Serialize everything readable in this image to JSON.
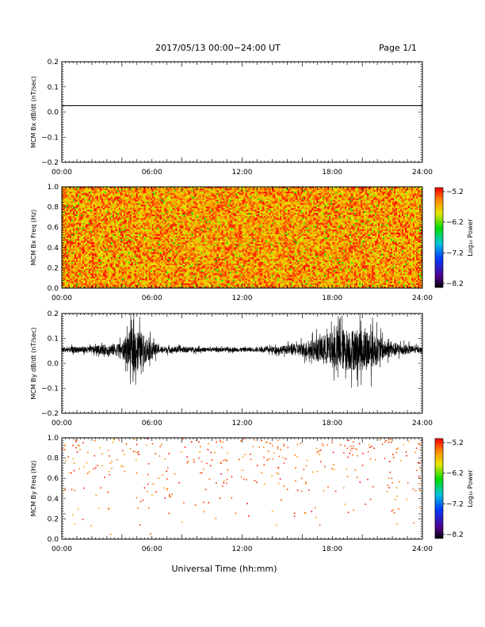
{
  "header": {
    "title": "2017/05/13  00:00−24:00 UT",
    "page": "Page 1/1"
  },
  "footer": {
    "xlabel": "Universal Time (hh:mm)"
  },
  "colors": {
    "axis": "#000000",
    "trace": "#000000"
  },
  "x_ticks": [
    "00:00",
    "06:00",
    "12:00",
    "18:00",
    "24:00"
  ],
  "chart_data": [
    {
      "type": "line",
      "ylabel": "MCM Bx dB/dt (nT/sec)",
      "xlim": [
        0,
        24
      ],
      "ylim": [
        -0.2,
        0.2
      ],
      "y_ticks": [
        "0.2",
        "0.1",
        "0.0",
        "−0.1",
        "−0.2"
      ],
      "y_tick_values": [
        0.2,
        0.1,
        0.0,
        -0.1,
        -0.2
      ],
      "series": [
        {
          "x": [
            0,
            24
          ],
          "y": [
            0.025,
            0.025
          ]
        }
      ]
    },
    {
      "type": "heatmap",
      "ylabel": "MCM Bx Freq (Hz)",
      "xlim": [
        0,
        24
      ],
      "ylim": [
        0,
        1.0
      ],
      "y_ticks": [
        "1.0",
        "0.8",
        "0.6",
        "0.4",
        "0.2",
        "0.0"
      ],
      "y_tick_values": [
        1.0,
        0.8,
        0.6,
        0.4,
        0.2,
        0.0
      ],
      "colorbar": {
        "label": "Log₁₀ Power",
        "ticks": [
          "−5.2",
          "−6.2",
          "−7.2",
          "−8.2"
        ],
        "range": [
          -8.2,
          -5.2
        ]
      },
      "description_values": {
        "typical_log_power": [
          -5.6,
          -5.2
        ]
      }
    },
    {
      "type": "line",
      "ylabel": "MCM By dB/dt (nT/sec)",
      "xlim": [
        0,
        24
      ],
      "ylim": [
        -0.2,
        0.2
      ],
      "y_ticks": [
        "0.2",
        "0.1",
        "0.0",
        "−0.1",
        "−0.2"
      ],
      "y_tick_values": [
        0.2,
        0.1,
        0.0,
        -0.1,
        -0.2
      ],
      "baseline": 0.055,
      "envelope": [
        {
          "t": 0,
          "amp": 0.015
        },
        {
          "t": 2,
          "amp": 0.02
        },
        {
          "t": 4,
          "amp": 0.04
        },
        {
          "t": 4.8,
          "amp": 0.14
        },
        {
          "t": 5.5,
          "amp": 0.08
        },
        {
          "t": 6.5,
          "amp": 0.02
        },
        {
          "t": 10,
          "amp": 0.012
        },
        {
          "t": 13,
          "amp": 0.012
        },
        {
          "t": 15,
          "amp": 0.025
        },
        {
          "t": 16.5,
          "amp": 0.05
        },
        {
          "t": 18.5,
          "amp": 0.12
        },
        {
          "t": 20.5,
          "amp": 0.12
        },
        {
          "t": 21.5,
          "amp": 0.05
        },
        {
          "t": 24,
          "amp": 0.012
        }
      ]
    },
    {
      "type": "heatmap",
      "ylabel": "MCM By Freq (Hz)",
      "xlim": [
        0,
        24
      ],
      "ylim": [
        0,
        1.0
      ],
      "y_ticks": [
        "1.0",
        "0.8",
        "0.6",
        "0.4",
        "0.2",
        "0.0"
      ],
      "y_tick_values": [
        1.0,
        0.8,
        0.6,
        0.4,
        0.2,
        0.0
      ],
      "colorbar": {
        "label": "Log₁₀ Power",
        "ticks": [
          "−5.2",
          "−6.2",
          "−7.2",
          "−8.2"
        ],
        "range": [
          -8.2,
          -5.2
        ]
      },
      "description_values": {
        "sparse": true
      }
    }
  ]
}
